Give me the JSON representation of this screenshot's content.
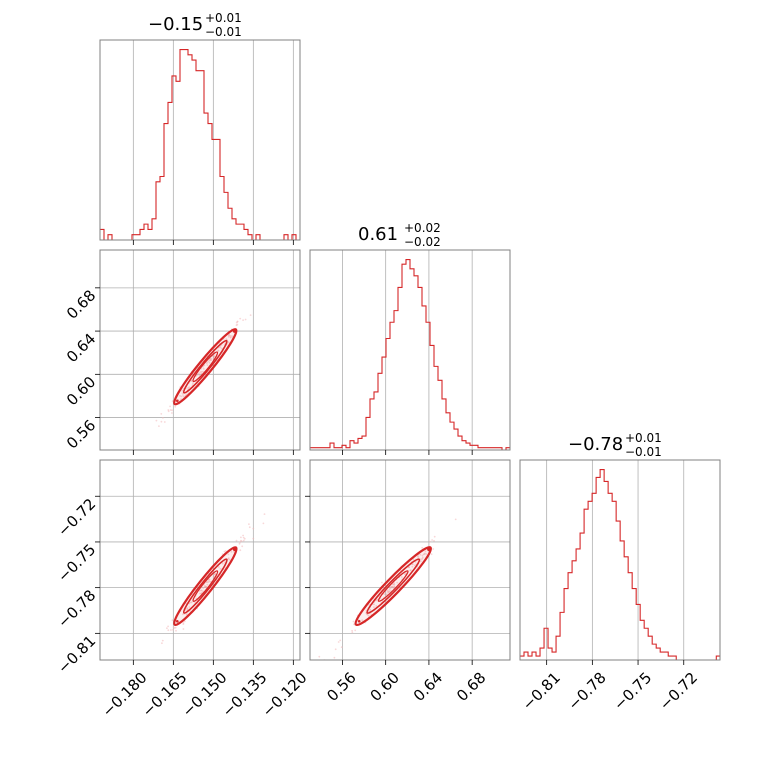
{
  "chart_data": {
    "type": "corner",
    "color": "#d62728",
    "parameters": [
      {
        "title_value": "−0.15",
        "title_plus": "+0.01",
        "title_minus": "−0.01",
        "range": [
          -0.1925,
          -0.1175
        ],
        "ticks": [
          -0.18,
          -0.165,
          -0.15,
          -0.135,
          -0.12
        ],
        "tick_labels": [
          "−0.180",
          "−0.165",
          "−0.150",
          "−0.135",
          "−0.120"
        ],
        "median": -0.153,
        "sigma": 0.005
      },
      {
        "title_value": "0.61",
        "title_plus": "+0.02",
        "title_minus": "−0.02",
        "range": [
          0.53,
          0.715
        ],
        "ticks": [
          0.56,
          0.6,
          0.64,
          0.68
        ],
        "tick_labels": [
          "0.56",
          "0.60",
          "0.64",
          "0.68"
        ],
        "median": 0.607,
        "sigma": 0.015
      },
      {
        "title_value": "−0.78",
        "title_plus": "+0.01",
        "title_minus": "−0.01",
        "range": [
          -0.8275,
          -0.6962
        ],
        "ticks": [
          -0.81,
          -0.78,
          -0.75,
          -0.72
        ],
        "tick_labels": [
          "−0.81",
          "−0.78",
          "−0.75",
          "−0.72"
        ],
        "median": -0.779,
        "sigma": 0.011
      }
    ],
    "histograms": [
      {
        "param": 0,
        "bin_edges_start": -0.1925,
        "bin_width": 0.0015,
        "counts": [
          2,
          0,
          1,
          0,
          0,
          0,
          0,
          0,
          1,
          1,
          2,
          3,
          2,
          4,
          11,
          12,
          22,
          26,
          31,
          30,
          36,
          36,
          35,
          34,
          32,
          32,
          24,
          22,
          19,
          19,
          12,
          9,
          6,
          4,
          3,
          3,
          2,
          1,
          0,
          1,
          0,
          0,
          0,
          0,
          0,
          0,
          1,
          0,
          1,
          0
        ]
      },
      {
        "param": 1,
        "bin_edges_start": 0.53,
        "bin_width": 0.0037,
        "counts": [
          1,
          1,
          1,
          1,
          1,
          3,
          1,
          1,
          2,
          1,
          4,
          3,
          5,
          6,
          14,
          22,
          25,
          33,
          40,
          48,
          55,
          60,
          70,
          80,
          82,
          78,
          75,
          70,
          62,
          55,
          45,
          36,
          30,
          22,
          16,
          12,
          9,
          6,
          4,
          3,
          2,
          2,
          1,
          1,
          1,
          1,
          1,
          1,
          0,
          1
        ]
      },
      {
        "param": 2,
        "bin_edges_start": -0.8275,
        "bin_width": 0.00263,
        "counts": [
          1,
          2,
          1,
          2,
          1,
          3,
          8,
          3,
          2,
          6,
          12,
          18,
          22,
          25,
          28,
          32,
          38,
          40,
          42,
          46,
          48,
          45,
          42,
          40,
          35,
          30,
          26,
          22,
          18,
          14,
          10,
          8,
          6,
          4,
          3,
          2,
          2,
          1,
          1,
          0,
          0,
          0,
          0,
          0,
          0,
          0,
          0,
          0,
          0,
          1
        ]
      }
    ],
    "pairs": [
      {
        "x": 0,
        "y": 1
      },
      {
        "x": 0,
        "y": 2
      },
      {
        "x": 1,
        "y": 2
      }
    ]
  }
}
